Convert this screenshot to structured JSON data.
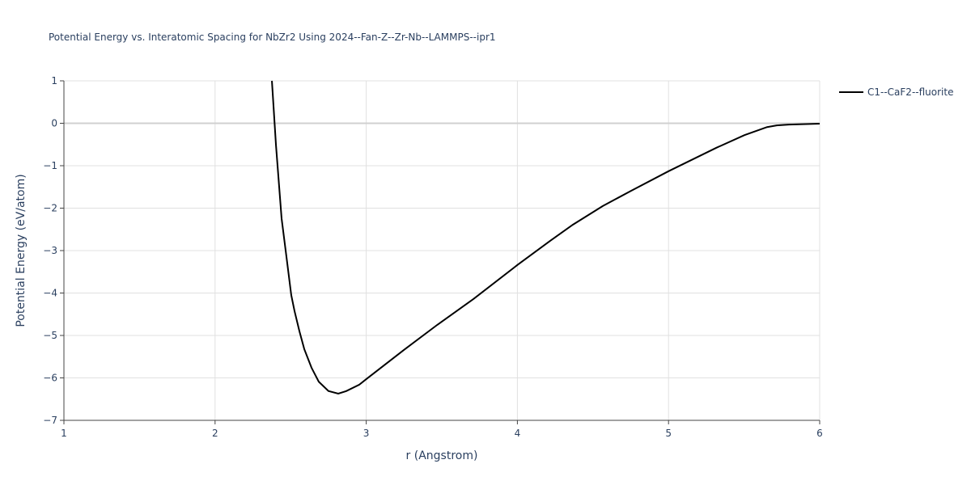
{
  "chart_data": {
    "type": "line",
    "title": "Potential Energy vs. Interatomic Spacing for NbZr2 Using 2024--Fan-Z--Zr-Nb--LAMMPS--ipr1",
    "x_label": "r (Angstrom)",
    "y_label": "Potential Energy (eV/atom)",
    "x": [
      2.376,
      2.403,
      2.44,
      2.467,
      2.504,
      2.526,
      2.558,
      2.59,
      2.638,
      2.686,
      2.75,
      2.815,
      2.868,
      2.954,
      3.0,
      3.25,
      3.47,
      3.71,
      4.0,
      4.217,
      4.367,
      4.565,
      4.753,
      5.0,
      5.315,
      5.502,
      5.652,
      5.716,
      5.797,
      6.0
    ],
    "series": [
      {
        "name": "C1--CaF2--fluorite",
        "color": "#000000",
        "values": [
          1.0,
          -0.52,
          -2.24,
          -3.0,
          -4.05,
          -4.43,
          -4.9,
          -5.32,
          -5.76,
          -6.09,
          -6.31,
          -6.37,
          -6.31,
          -6.16,
          -6.03,
          -5.34,
          -4.75,
          -4.14,
          -3.34,
          -2.77,
          -2.39,
          -1.95,
          -1.59,
          -1.13,
          -0.58,
          -0.28,
          -0.09,
          -0.05,
          -0.03,
          -0.01
        ]
      }
    ],
    "xlim": [
      1,
      6
    ],
    "xticks": [
      1,
      2,
      3,
      4,
      5,
      6
    ],
    "ylim": [
      -7,
      1
    ],
    "yticks": [
      1,
      0,
      {
        "value": -1,
        "label": "−1"
      },
      {
        "value": -2,
        "label": "−2"
      },
      {
        "value": -3,
        "label": "−3"
      },
      {
        "value": -4,
        "label": "−4"
      },
      {
        "value": -5,
        "label": "−5"
      },
      {
        "value": -6,
        "label": "−6"
      },
      {
        "value": -7,
        "label": "−7"
      }
    ],
    "grid": true,
    "legend_position": "top-right"
  }
}
